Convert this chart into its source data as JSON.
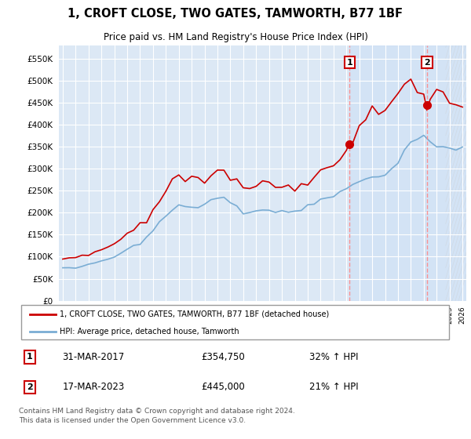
{
  "title": "1, CROFT CLOSE, TWO GATES, TAMWORTH, B77 1BF",
  "subtitle": "Price paid vs. HM Land Registry's House Price Index (HPI)",
  "background_color": "#ffffff",
  "plot_bg_color": "#dce8f5",
  "plot_bg_color_right": "#dce8f5",
  "grid_color": "#ffffff",
  "red_line_color": "#cc0000",
  "blue_line_color": "#7aadd4",
  "sale1_date": "31-MAR-2017",
  "sale1_price": 354750,
  "sale1_pct": "32%",
  "sale2_date": "17-MAR-2023",
  "sale2_price": 445000,
  "sale2_pct": "21%",
  "legend_label1": "1, CROFT CLOSE, TWO GATES, TAMWORTH, B77 1BF (detached house)",
  "legend_label2": "HPI: Average price, detached house, Tamworth",
  "footer": "Contains HM Land Registry data © Crown copyright and database right 2024.\nThis data is licensed under the Open Government Licence v3.0.",
  "ylim": [
    0,
    580000
  ],
  "yticks": [
    0,
    50000,
    100000,
    150000,
    200000,
    250000,
    300000,
    350000,
    400000,
    450000,
    500000,
    550000
  ],
  "sale1_x": 2017.25,
  "sale1_y": 354750,
  "sale2_x": 2023.25,
  "sale2_y": 445000,
  "x_min": 1994.7,
  "x_max": 2026.3
}
